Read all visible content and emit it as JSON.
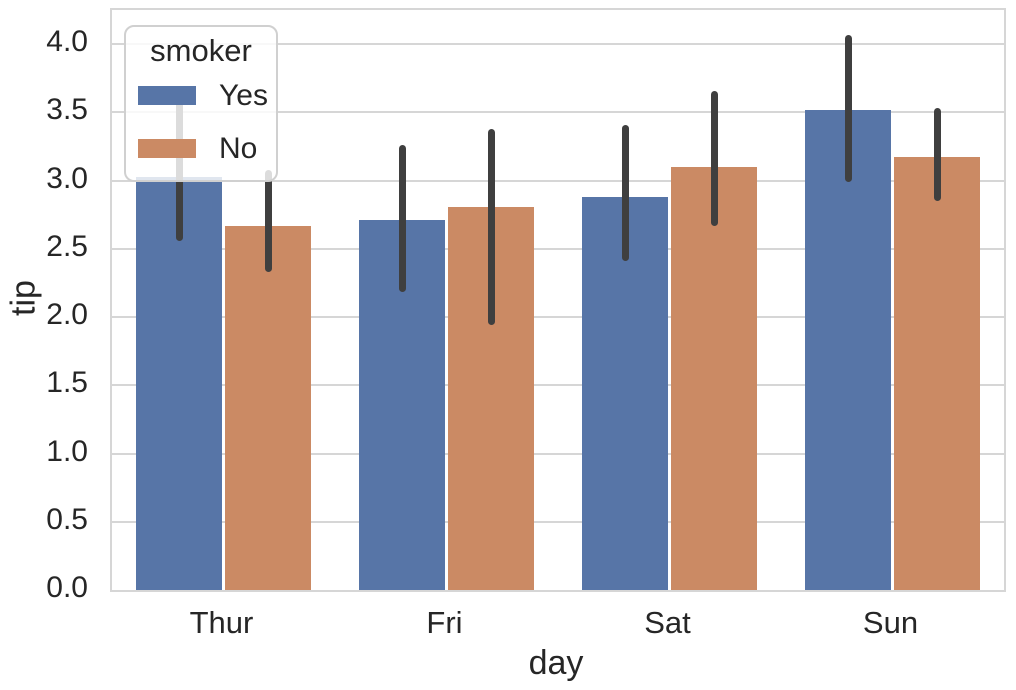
{
  "chart_data": {
    "type": "bar",
    "title": "",
    "xlabel": "day",
    "ylabel": "tip",
    "categories": [
      "Thur",
      "Fri",
      "Sat",
      "Sun"
    ],
    "series": [
      {
        "name": "Yes",
        "color": "#5775a7",
        "values": [
          3.03,
          2.71,
          2.88,
          3.52
        ],
        "ci_low": [
          2.56,
          2.18,
          2.41,
          2.99
        ],
        "ci_high": [
          3.59,
          3.26,
          3.41,
          4.07
        ]
      },
      {
        "name": "No",
        "color": "#cb8a64",
        "values": [
          2.67,
          2.81,
          3.1,
          3.17
        ],
        "ci_low": [
          2.33,
          1.94,
          2.67,
          2.85
        ],
        "ci_high": [
          3.08,
          3.38,
          3.66,
          3.53
        ]
      }
    ],
    "ylim": [
      0,
      4.25
    ],
    "yticks": [
      0.0,
      0.5,
      1.0,
      1.5,
      2.0,
      2.5,
      3.0,
      3.5,
      4.0
    ],
    "ytick_labels": [
      "0.0",
      "0.5",
      "1.0",
      "1.5",
      "2.0",
      "2.5",
      "3.0",
      "3.5",
      "4.0"
    ],
    "grid": "horizontal",
    "grid_color": "#d6d6d6",
    "error_bar_color": "#3f3f3f",
    "background_color": "#ffffff",
    "legend": {
      "title": "smoker",
      "position": "upper left",
      "entries": [
        {
          "label": "Yes",
          "color": "#5775a7"
        },
        {
          "label": "No",
          "color": "#cb8a64"
        }
      ]
    }
  }
}
